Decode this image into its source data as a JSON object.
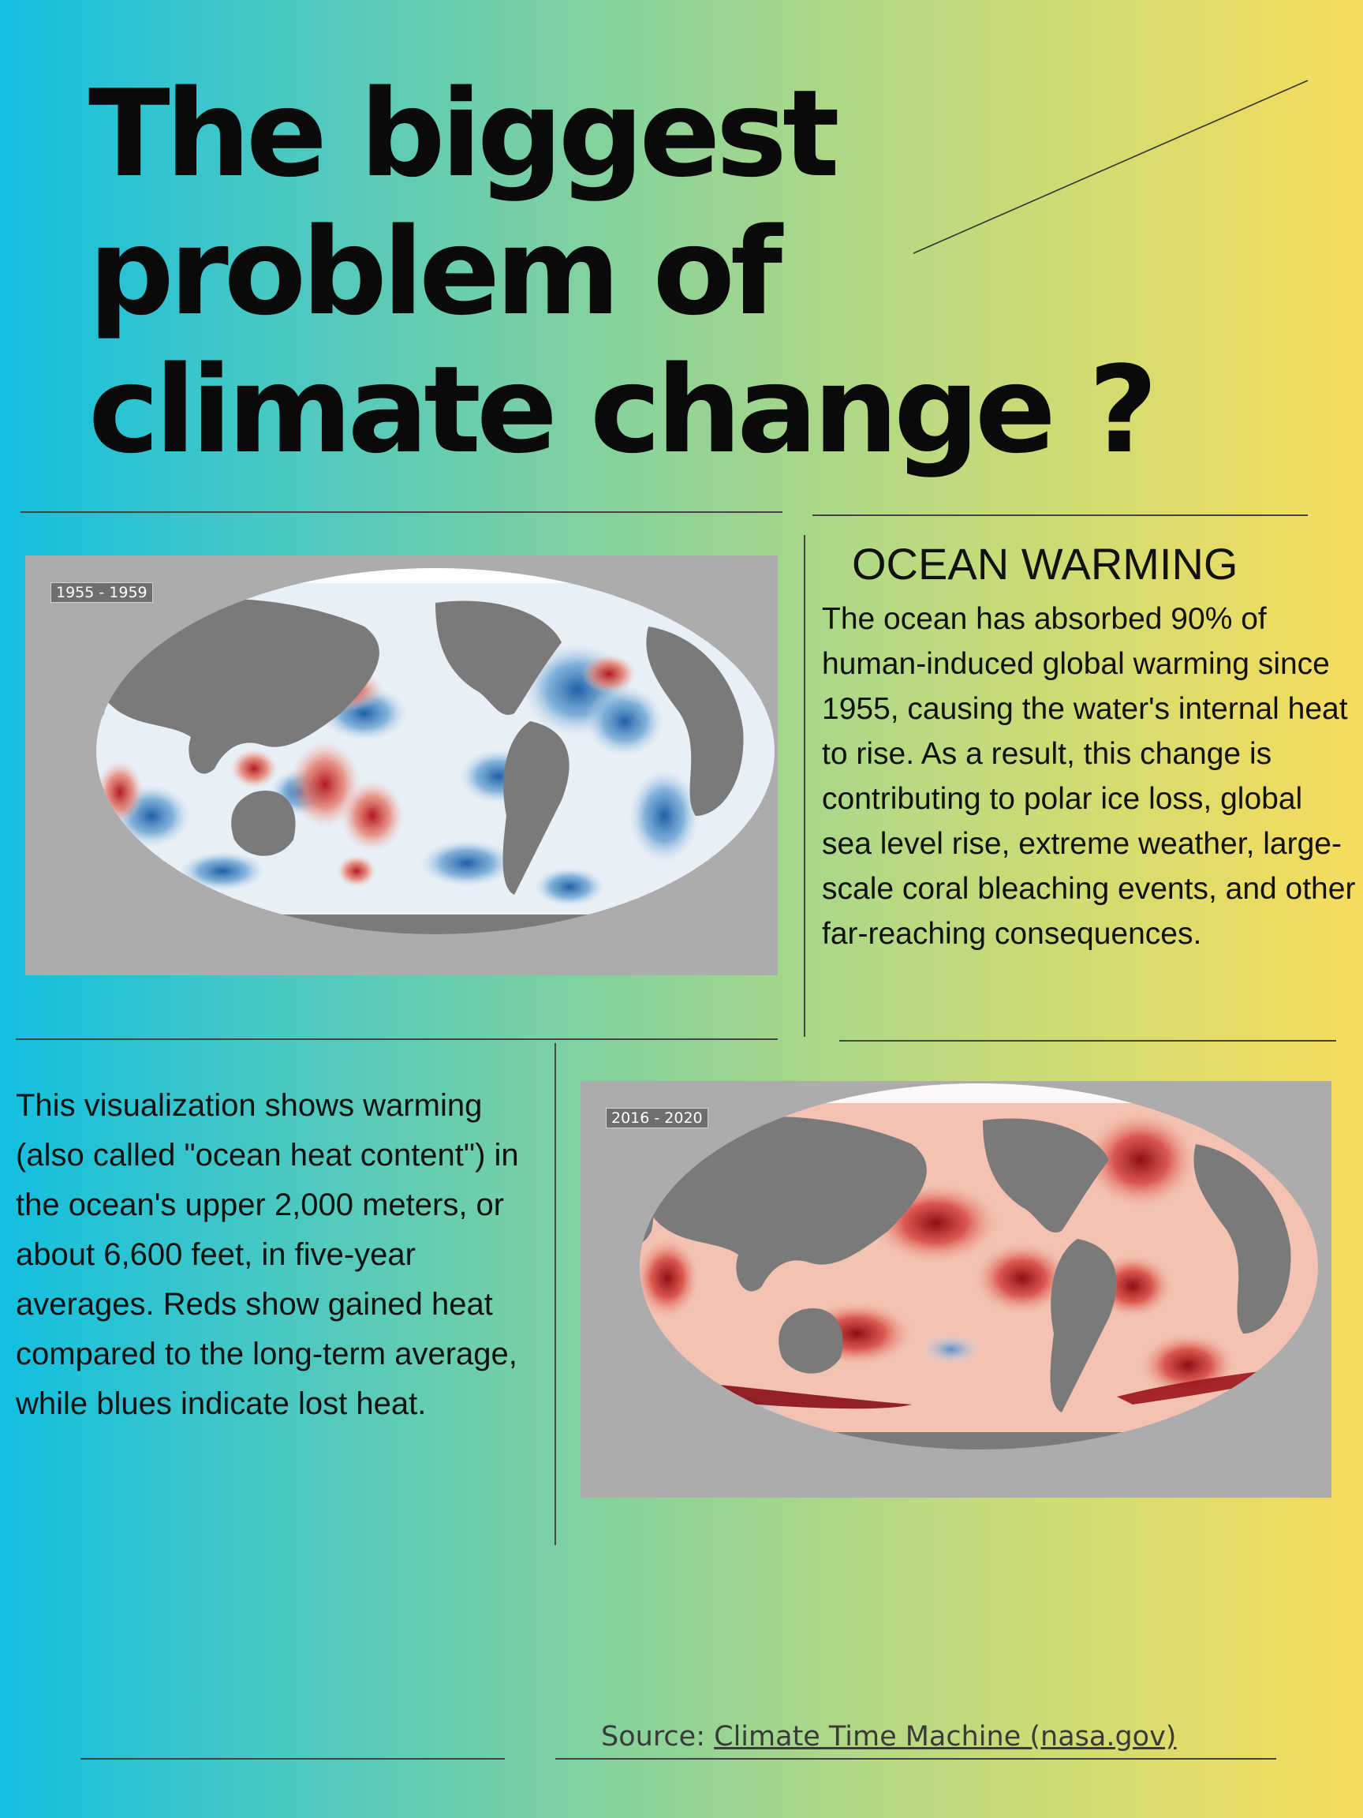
{
  "title": {
    "line1": "The biggest",
    "line2": "problem of",
    "line3": "climate change ?"
  },
  "maps": {
    "before": {
      "label": "1955 - 1959"
    },
    "after": {
      "label": "2016 - 2020"
    }
  },
  "section": {
    "heading": "OCEAN WARMING",
    "body": "The ocean has absorbed 90% of human-induced global warming since 1955, causing the water's internal heat to rise. As a result, this change is contributing to polar ice loss, global sea level rise, extreme weather, large-scale coral bleaching events, and other far-reaching consequences."
  },
  "description": "This visualization shows warming (also called \"ocean heat content\") in the ocean's upper 2,000 meters, or about 6,600 feet, in five-year averages. Reds show gained heat compared to the long-term average, while blues indicate lost heat.",
  "source": {
    "prefix": "Source: ",
    "link_text": "Climate Time Machine (nasa.gov)"
  },
  "colors": {
    "land": "#7a7a7a",
    "panel": "#acacac",
    "warm": "#c0282d",
    "cool": "#2c6fb0"
  }
}
